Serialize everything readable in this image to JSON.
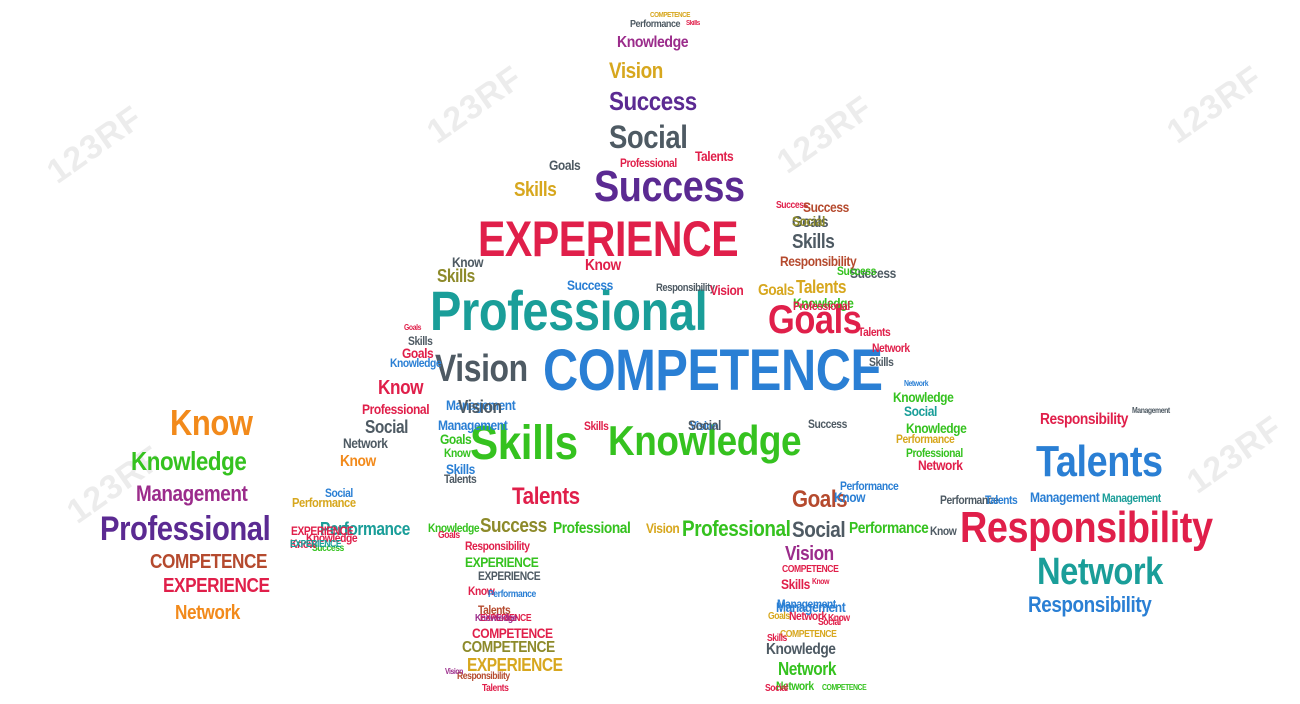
{
  "colors": {
    "red": "#e01f4a",
    "crimson": "#d11b2b",
    "blue": "#2a7fd4",
    "teal": "#1a9e99",
    "green": "#35c21f",
    "purple": "#5b2a92",
    "orange": "#f28a1b",
    "olive": "#8d8a2a",
    "darkgray": "#4e5a63",
    "navy": "#1f4f9e",
    "lime": "#7ec11b",
    "gold": "#d7a71e",
    "magenta": "#9b2c8b",
    "brown": "#b54a2e"
  },
  "watermark": {
    "text": "123RF"
  },
  "words": [
    {
      "text": "EXPERIENCE",
      "color": "#e01f4a"
    },
    {
      "text": "Professional",
      "color": "#1a9e99"
    },
    {
      "text": "COMPETENCE",
      "color": "#2a7fd4"
    },
    {
      "text": "Success",
      "color": "#5b2a92"
    },
    {
      "text": "Skills",
      "color": "#35c21f"
    },
    {
      "text": "Knowledge",
      "color": "#35c21f"
    },
    {
      "text": "Goals",
      "color": "#e01f4a"
    },
    {
      "text": "Vision",
      "color": "#4e5a63"
    },
    {
      "text": "Social",
      "color": "#4e5a63"
    },
    {
      "text": "Success",
      "color": "#5b2a92"
    },
    {
      "text": "Vision",
      "color": "#d7a71e"
    },
    {
      "text": "Knowledge",
      "color": "#9b2c8b"
    },
    {
      "text": "Performance",
      "color": "#4e5a63"
    },
    {
      "text": "COMPETENCE",
      "color": "#d7a71e"
    },
    {
      "text": "Skills",
      "color": "#e01f4a"
    },
    {
      "text": "Talents",
      "color": "#e01f4a"
    },
    {
      "text": "Management",
      "color": "#2a7fd4"
    },
    {
      "text": "Skills",
      "color": "#d7a71e"
    },
    {
      "text": "Goals",
      "color": "#4e5a63"
    },
    {
      "text": "Talents",
      "color": "#e01f4a"
    },
    {
      "text": "Success",
      "color": "#e01f4a"
    },
    {
      "text": "Know",
      "color": "#f28a1b"
    },
    {
      "text": "Knowledge",
      "color": "#35c21f"
    },
    {
      "text": "Management",
      "color": "#9b2c8b"
    },
    {
      "text": "Professional",
      "color": "#5b2a92"
    },
    {
      "text": "COMPETENCE",
      "color": "#b54a2e"
    },
    {
      "text": "EXPERIENCE",
      "color": "#e01f4a"
    },
    {
      "text": "Network",
      "color": "#f28a1b"
    },
    {
      "text": "Talents",
      "color": "#2a7fd4"
    },
    {
      "text": "Responsibility",
      "color": "#e01f4a"
    },
    {
      "text": "Network",
      "color": "#1a9e99"
    },
    {
      "text": "Responsibility",
      "color": "#2a7fd4"
    },
    {
      "text": "Responsibility",
      "color": "#e01f4a"
    },
    {
      "text": "Management",
      "color": "#2a7fd4"
    },
    {
      "text": "Management",
      "color": "#1a9e99"
    },
    {
      "text": "Performance",
      "color": "#1a9e99"
    },
    {
      "text": "Professional",
      "color": "#35c21f"
    },
    {
      "text": "Vision",
      "color": "#d7a71e"
    },
    {
      "text": "Professional",
      "color": "#35c21f"
    },
    {
      "text": "Social",
      "color": "#4e5a63"
    },
    {
      "text": "Performance",
      "color": "#35c21f"
    },
    {
      "text": "Performance",
      "color": "#d7a71e"
    },
    {
      "text": "Success",
      "color": "#8d8a2a"
    },
    {
      "text": "Goals",
      "color": "#b54a2e"
    },
    {
      "text": "Vision",
      "color": "#9b2c8b"
    },
    {
      "text": "Know",
      "color": "#e01f4a"
    },
    {
      "text": "Professional",
      "color": "#e01f4a"
    },
    {
      "text": "Social",
      "color": "#4e5a63"
    },
    {
      "text": "Network",
      "color": "#4e5a63"
    },
    {
      "text": "Know",
      "color": "#f28a1b"
    },
    {
      "text": "Responsibility",
      "color": "#e01f4a"
    },
    {
      "text": "EXPERIENCE",
      "color": "#35c21f"
    },
    {
      "text": "EXPERIENCE",
      "color": "#4e5a63"
    },
    {
      "text": "COMPETENCE",
      "color": "#e01f4a"
    },
    {
      "text": "COMPETENCE",
      "color": "#8d8a2a"
    },
    {
      "text": "EXPERIENCE",
      "color": "#d7a71e"
    },
    {
      "text": "Knowledge",
      "color": "#4e5a63"
    },
    {
      "text": "Network",
      "color": "#35c21f"
    },
    {
      "text": "Skills",
      "color": "#e01f4a"
    },
    {
      "text": "Management",
      "color": "#2a7fd4"
    },
    {
      "text": "Network",
      "color": "#e01f4a"
    },
    {
      "text": "COMPETENCE",
      "color": "#e01f4a"
    },
    {
      "text": "Knowledge",
      "color": "#35c21f"
    },
    {
      "text": "Performance",
      "color": "#d7a71e"
    },
    {
      "text": "Professional",
      "color": "#35c21f"
    },
    {
      "text": "Network",
      "color": "#e01f4a"
    },
    {
      "text": "Goals",
      "color": "#4e5a63"
    },
    {
      "text": "Skills",
      "color": "#4e5a63"
    },
    {
      "text": "Responsibility",
      "color": "#b54a2e"
    },
    {
      "text": "Talents",
      "color": "#d7a71e"
    },
    {
      "text": "Social",
      "color": "#8d8a2a"
    },
    {
      "text": "Success",
      "color": "#b54a2e"
    },
    {
      "text": "Goals",
      "color": "#d7a71e"
    },
    {
      "text": "Responsibility",
      "color": "#4e5a63"
    },
    {
      "text": "Success",
      "color": "#2a7fd4"
    },
    {
      "text": "Vision",
      "color": "#e01f4a"
    },
    {
      "text": "Professional",
      "color": "#e01f4a"
    },
    {
      "text": "Know",
      "color": "#4e5a63"
    },
    {
      "text": "Know",
      "color": "#4e5a63"
    },
    {
      "text": "Skills",
      "color": "#8d8a2a"
    },
    {
      "text": "Goals",
      "color": "#e01f4a"
    },
    {
      "text": "Skills",
      "color": "#4e5a63"
    },
    {
      "text": "Goals",
      "color": "#e01f4a"
    },
    {
      "text": "Knowledge",
      "color": "#2a7fd4"
    },
    {
      "text": "Vision",
      "color": "#4e5a63"
    },
    {
      "text": "Management",
      "color": "#2a7fd4"
    },
    {
      "text": "Goals",
      "color": "#35c21f"
    },
    {
      "text": "Know",
      "color": "#35c21f"
    },
    {
      "text": "Skills",
      "color": "#2a7fd4"
    },
    {
      "text": "Talents",
      "color": "#4e5a63"
    },
    {
      "text": "Skills",
      "color": "#e01f4a"
    },
    {
      "text": "Vision",
      "color": "#2a7fd4"
    },
    {
      "text": "Social",
      "color": "#4e5a63"
    },
    {
      "text": "Success",
      "color": "#4e5a63"
    },
    {
      "text": "Performance",
      "color": "#2a7fd4"
    },
    {
      "text": "Know",
      "color": "#2a7fd4"
    },
    {
      "text": "Knowledge",
      "color": "#35c21f"
    },
    {
      "text": "Social",
      "color": "#1a9e99"
    },
    {
      "text": "Network",
      "color": "#2a7fd4"
    },
    {
      "text": "Talents",
      "color": "#e01f4a"
    },
    {
      "text": "Network",
      "color": "#e01f4a"
    },
    {
      "text": "Skills",
      "color": "#4e5a63"
    },
    {
      "text": "Success",
      "color": "#4e5a63"
    },
    {
      "text": "Knowledge",
      "color": "#35c21f"
    },
    {
      "text": "Success",
      "color": "#35c21f"
    },
    {
      "text": "Know",
      "color": "#e01f4a"
    },
    {
      "text": "COMPETENCE",
      "color": "#4e5a63"
    },
    {
      "text": "Professional",
      "color": "#e01f4a"
    },
    {
      "text": "Knowledge",
      "color": "#4e5a63"
    },
    {
      "text": "Network",
      "color": "#35c21f"
    },
    {
      "text": "Social",
      "color": "#e01f4a"
    },
    {
      "text": "COMPETENCE",
      "color": "#35c21f"
    },
    {
      "text": "Talents",
      "color": "#e01f4a"
    },
    {
      "text": "Know",
      "color": "#e01f4a"
    },
    {
      "text": "Management",
      "color": "#2a7fd4"
    },
    {
      "text": "Responsibility",
      "color": "#e01f4a"
    },
    {
      "text": "Performance",
      "color": "#4e5a63"
    },
    {
      "text": "Know",
      "color": "#4e5a63"
    },
    {
      "text": "Talents",
      "color": "#2a7fd4"
    },
    {
      "text": "Management",
      "color": "#4e5a63"
    },
    {
      "text": "COMPETENCE",
      "color": "#e01f4a"
    },
    {
      "text": "Professional",
      "color": "#e01f4a"
    },
    {
      "text": "Success",
      "color": "#35c21f"
    },
    {
      "text": "EXPERIENCE",
      "color": "#e01f4a"
    },
    {
      "text": "Social",
      "color": "#2a7fd4"
    },
    {
      "text": "Know",
      "color": "#e01f4a"
    },
    {
      "text": "Knowledge",
      "color": "#e01f4a"
    },
    {
      "text": "EXPERIENCE",
      "color": "#1a9e99"
    },
    {
      "text": "Knowledge",
      "color": "#35c21f"
    },
    {
      "text": "Goals",
      "color": "#e01f4a"
    },
    {
      "text": "Talents",
      "color": "#b54a2e"
    },
    {
      "text": "Social",
      "color": "#4e5a63"
    },
    {
      "text": "Know",
      "color": "#e01f4a"
    },
    {
      "text": "EXPERIENCE",
      "color": "#e01f4a"
    },
    {
      "text": "Responsibility",
      "color": "#b54a2e"
    },
    {
      "text": "Performance",
      "color": "#2a7fd4"
    },
    {
      "text": "Vision",
      "color": "#9b2c8b"
    },
    {
      "text": "Social",
      "color": "#2a7fd4"
    },
    {
      "text": "Knowledge",
      "color": "#9b2c8b"
    },
    {
      "text": "Network",
      "color": "#e01f4a"
    },
    {
      "text": "Talents",
      "color": "#e01f4a"
    },
    {
      "text": "Responsibility",
      "color": "#4e5a63"
    },
    {
      "text": "COMPETENCE",
      "color": "#d7a71e"
    },
    {
      "text": "Skills",
      "color": "#e01f4a"
    },
    {
      "text": "Success",
      "color": "#35c21f"
    },
    {
      "text": "Knowledge",
      "color": "#35c21f"
    },
    {
      "text": "Know",
      "color": "#e01f4a"
    },
    {
      "text": "Professional",
      "color": "#2a7fd4"
    },
    {
      "text": "Social",
      "color": "#e01f4a"
    },
    {
      "text": "Goals",
      "color": "#d7a71e"
    }
  ]
}
